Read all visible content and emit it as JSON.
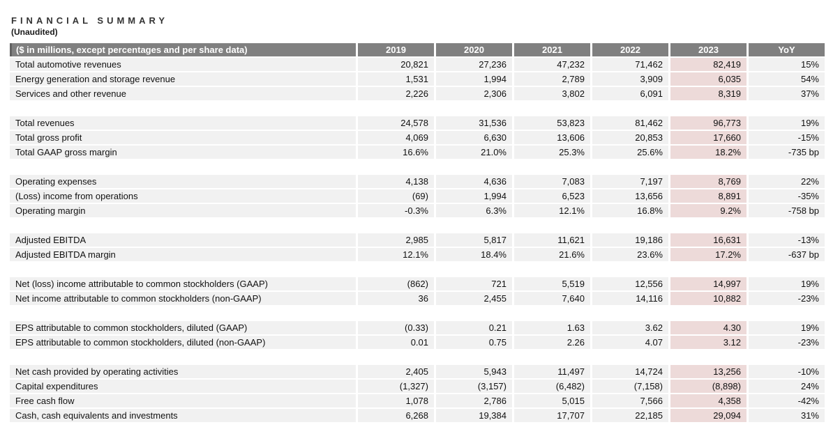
{
  "page": {
    "title": "FINANCIAL SUMMARY",
    "subtitle": "(Unaudited)"
  },
  "colors": {
    "header_bg": "#808080",
    "header_accent": "#616161",
    "header_text": "#ffffff",
    "row_bg": "#f1f1f1",
    "highlight_2023_bg": "#eddad9",
    "text": "#111111"
  },
  "table": {
    "label_header": "($ in millions, except percentages and per share data)",
    "year_headers": [
      "2019",
      "2020",
      "2021",
      "2022",
      "2023"
    ],
    "yoy_header": "YoY",
    "highlight_column": "2023",
    "sections": [
      {
        "rows": [
          {
            "label": "Total automotive revenues",
            "values": [
              "20,821",
              "27,236",
              "47,232",
              "71,462",
              "82,419"
            ],
            "yoy": "15%"
          },
          {
            "label": "Energy generation and storage revenue",
            "values": [
              "1,531",
              "1,994",
              "2,789",
              "3,909",
              "6,035"
            ],
            "yoy": "54%"
          },
          {
            "label": "Services and other revenue",
            "values": [
              "2,226",
              "2,306",
              "3,802",
              "6,091",
              "8,319"
            ],
            "yoy": "37%"
          }
        ]
      },
      {
        "rows": [
          {
            "label": "Total revenues",
            "values": [
              "24,578",
              "31,536",
              "53,823",
              "81,462",
              "96,773"
            ],
            "yoy": "19%"
          },
          {
            "label": "Total gross profit",
            "values": [
              "4,069",
              "6,630",
              "13,606",
              "20,853",
              "17,660"
            ],
            "yoy": "-15%"
          },
          {
            "label": "Total GAAP gross margin",
            "values": [
              "16.6%",
              "21.0%",
              "25.3%",
              "25.6%",
              "18.2%"
            ],
            "yoy": "-735 bp"
          }
        ]
      },
      {
        "rows": [
          {
            "label": "Operating expenses",
            "values": [
              "4,138",
              "4,636",
              "7,083",
              "7,197",
              "8,769"
            ],
            "yoy": "22%"
          },
          {
            "label": "(Loss) income from operations",
            "values": [
              "(69)",
              "1,994",
              "6,523",
              "13,656",
              "8,891"
            ],
            "yoy": "-35%"
          },
          {
            "label": "Operating margin",
            "values": [
              "-0.3%",
              "6.3%",
              "12.1%",
              "16.8%",
              "9.2%"
            ],
            "yoy": "-758 bp"
          }
        ]
      },
      {
        "rows": [
          {
            "label": "Adjusted EBITDA",
            "values": [
              "2,985",
              "5,817",
              "11,621",
              "19,186",
              "16,631"
            ],
            "yoy": "-13%"
          },
          {
            "label": "Adjusted EBITDA margin",
            "values": [
              "12.1%",
              "18.4%",
              "21.6%",
              "23.6%",
              "17.2%"
            ],
            "yoy": "-637 bp"
          }
        ]
      },
      {
        "rows": [
          {
            "label": "Net (loss) income attributable to common stockholders (GAAP)",
            "values": [
              "(862)",
              "721",
              "5,519",
              "12,556",
              "14,997"
            ],
            "yoy": "19%"
          },
          {
            "label": "Net income attributable to common stockholders (non-GAAP)",
            "values": [
              "36",
              "2,455",
              "7,640",
              "14,116",
              "10,882"
            ],
            "yoy": "-23%"
          }
        ]
      },
      {
        "rows": [
          {
            "label": "EPS attributable to common stockholders, diluted (GAAP)",
            "values": [
              "(0.33)",
              "0.21",
              "1.63",
              "3.62",
              "4.30"
            ],
            "yoy": "19%"
          },
          {
            "label": "EPS attributable to common stockholders, diluted (non-GAAP)",
            "values": [
              "0.01",
              "0.75",
              "2.26",
              "4.07",
              "3.12"
            ],
            "yoy": "-23%"
          }
        ]
      },
      {
        "rows": [
          {
            "label": "Net cash provided by operating activities",
            "values": [
              "2,405",
              "5,943",
              "11,497",
              "14,724",
              "13,256"
            ],
            "yoy": "-10%"
          },
          {
            "label": "Capital expenditures",
            "values": [
              "(1,327)",
              "(3,157)",
              "(6,482)",
              "(7,158)",
              "(8,898)"
            ],
            "yoy": "24%"
          },
          {
            "label": "Free cash flow",
            "values": [
              "1,078",
              "2,786",
              "5,015",
              "7,566",
              "4,358"
            ],
            "yoy": "-42%"
          },
          {
            "label": "Cash, cash equivalents and investments",
            "values": [
              "6,268",
              "19,384",
              "17,707",
              "22,185",
              "29,094"
            ],
            "yoy": "31%"
          }
        ]
      }
    ]
  },
  "chart_data": {
    "type": "table",
    "title": "FINANCIAL SUMMARY (Unaudited)",
    "columns": [
      "($ in millions, except percentages and per share data)",
      "2019",
      "2020",
      "2021",
      "2022",
      "2023",
      "YoY"
    ],
    "rows": [
      [
        "Total automotive revenues",
        "20,821",
        "27,236",
        "47,232",
        "71,462",
        "82,419",
        "15%"
      ],
      [
        "Energy generation and storage revenue",
        "1,531",
        "1,994",
        "2,789",
        "3,909",
        "6,035",
        "54%"
      ],
      [
        "Services and other revenue",
        "2,226",
        "2,306",
        "3,802",
        "6,091",
        "8,319",
        "37%"
      ],
      [
        "Total revenues",
        "24,578",
        "31,536",
        "53,823",
        "81,462",
        "96,773",
        "19%"
      ],
      [
        "Total gross profit",
        "4,069",
        "6,630",
        "13,606",
        "20,853",
        "17,660",
        "-15%"
      ],
      [
        "Total GAAP gross margin",
        "16.6%",
        "21.0%",
        "25.3%",
        "25.6%",
        "18.2%",
        "-735 bp"
      ],
      [
        "Operating expenses",
        "4,138",
        "4,636",
        "7,083",
        "7,197",
        "8,769",
        "22%"
      ],
      [
        "(Loss) income from operations",
        "(69)",
        "1,994",
        "6,523",
        "13,656",
        "8,891",
        "-35%"
      ],
      [
        "Operating margin",
        "-0.3%",
        "6.3%",
        "12.1%",
        "16.8%",
        "9.2%",
        "-758 bp"
      ],
      [
        "Adjusted EBITDA",
        "2,985",
        "5,817",
        "11,621",
        "19,186",
        "16,631",
        "-13%"
      ],
      [
        "Adjusted EBITDA margin",
        "12.1%",
        "18.4%",
        "21.6%",
        "23.6%",
        "17.2%",
        "-637 bp"
      ],
      [
        "Net (loss) income attributable to common stockholders (GAAP)",
        "(862)",
        "721",
        "5,519",
        "12,556",
        "14,997",
        "19%"
      ],
      [
        "Net income attributable to common stockholders (non-GAAP)",
        "36",
        "2,455",
        "7,640",
        "14,116",
        "10,882",
        "-23%"
      ],
      [
        "EPS attributable to common stockholders, diluted (GAAP)",
        "(0.33)",
        "0.21",
        "1.63",
        "3.62",
        "4.30",
        "19%"
      ],
      [
        "EPS attributable to common stockholders, diluted (non-GAAP)",
        "0.01",
        "0.75",
        "2.26",
        "4.07",
        "3.12",
        "-23%"
      ],
      [
        "Net cash provided by operating activities",
        "2,405",
        "5,943",
        "11,497",
        "14,724",
        "13,256",
        "-10%"
      ],
      [
        "Capital expenditures",
        "(1,327)",
        "(3,157)",
        "(6,482)",
        "(7,158)",
        "(8,898)",
        "24%"
      ],
      [
        "Free cash flow",
        "1,078",
        "2,786",
        "5,015",
        "7,566",
        "4,358",
        "-42%"
      ],
      [
        "Cash, cash equivalents and investments",
        "6,268",
        "19,384",
        "17,707",
        "22,185",
        "29,094",
        "31%"
      ]
    ]
  }
}
